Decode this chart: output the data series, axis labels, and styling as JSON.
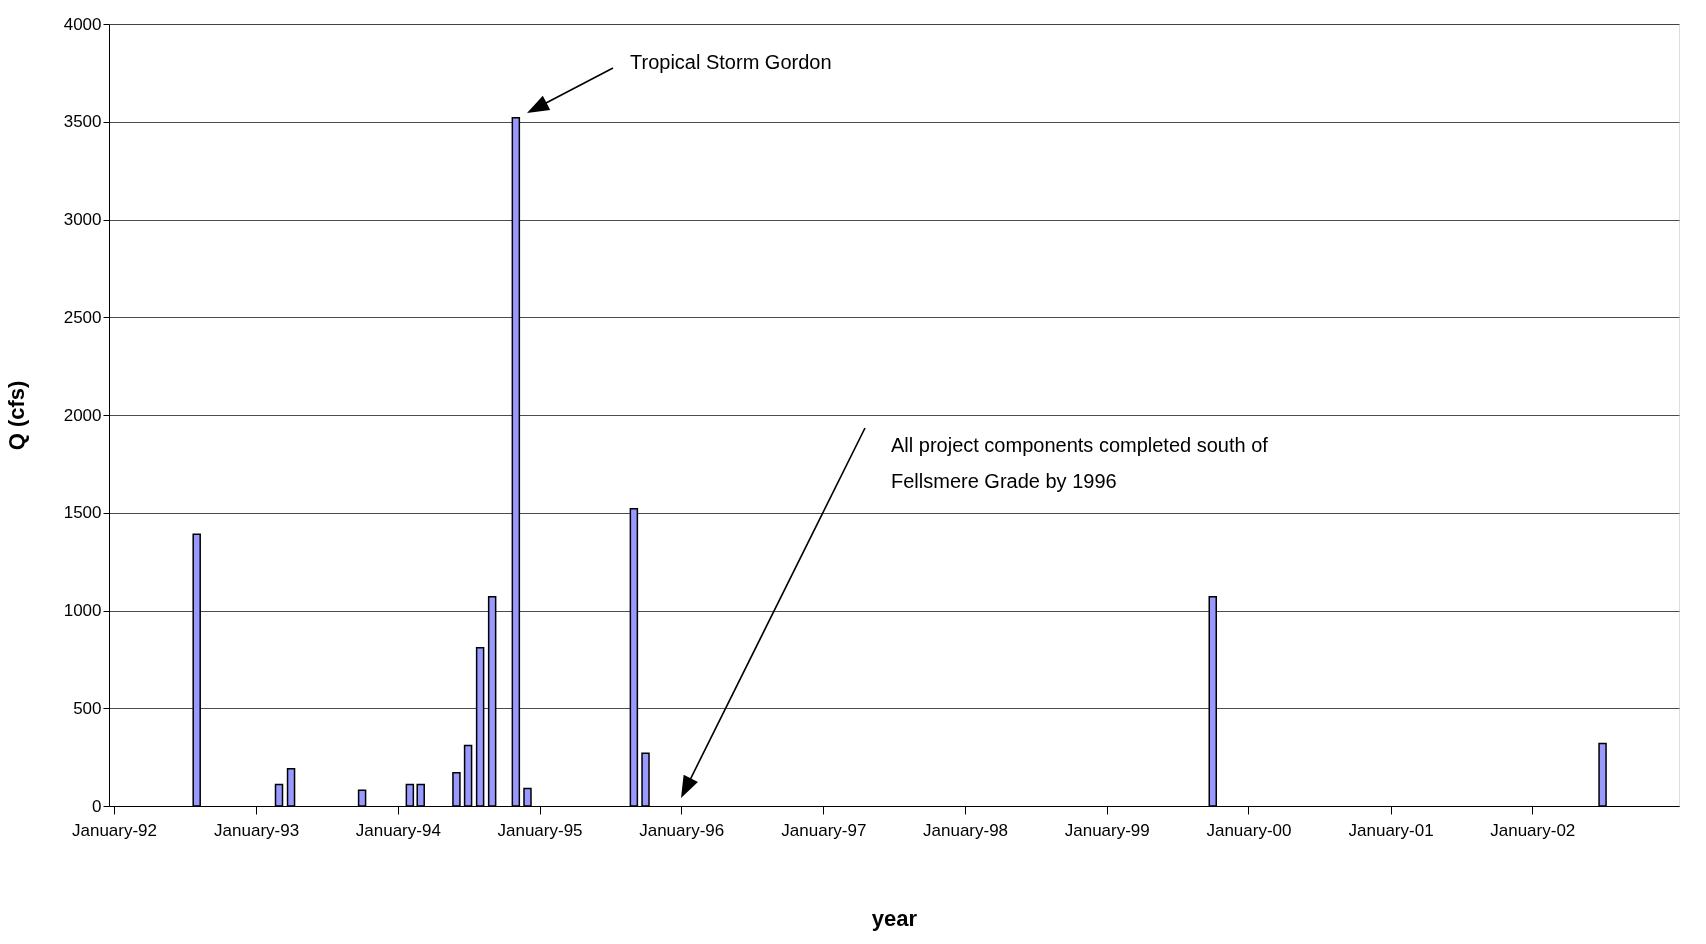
{
  "chart_data": {
    "type": "bar",
    "xlabel": "year",
    "ylabel": "Q (cfs)",
    "x": [
      "1992-08",
      "1993-03",
      "1993-04",
      "1993-10",
      "1994-02",
      "1994-03",
      "1994-06",
      "1994-07",
      "1994-08",
      "1994-09",
      "1994-11",
      "1994-12",
      "1995-09",
      "1995-10",
      "1999-10",
      "2002-07"
    ],
    "series": [
      {
        "color": "#9999ff",
        "values": [
          1390,
          110,
          190,
          80,
          110,
          110,
          170,
          310,
          810,
          1070,
          3520,
          90,
          1520,
          270,
          1070,
          320
        ]
      }
    ],
    "xlim": [
      "1992-01",
      "2003-01"
    ],
    "xticks": [
      {
        "value": "1992-01",
        "label": "January-92"
      },
      {
        "value": "1993-01",
        "label": "January-93"
      },
      {
        "value": "1994-01",
        "label": "January-94"
      },
      {
        "value": "1995-01",
        "label": "January-95"
      },
      {
        "value": "1996-01",
        "label": "January-96"
      },
      {
        "value": "1997-01",
        "label": "January-97"
      },
      {
        "value": "1998-01",
        "label": "January-98"
      },
      {
        "value": "1999-01",
        "label": "January-99"
      },
      {
        "value": "2000-01",
        "label": "January-00"
      },
      {
        "value": "2001-01",
        "label": "January-01"
      },
      {
        "value": "2002-01",
        "label": "January-02"
      }
    ],
    "ylim": [
      0,
      4000
    ],
    "yticks": [
      0,
      500,
      1000,
      1500,
      2000,
      2500,
      3000,
      3500,
      4000
    ],
    "grid": "y",
    "annotations": [
      "Tropical Storm Gordon",
      "All project components completed south of\nFellsmere Grade by 1996"
    ]
  }
}
